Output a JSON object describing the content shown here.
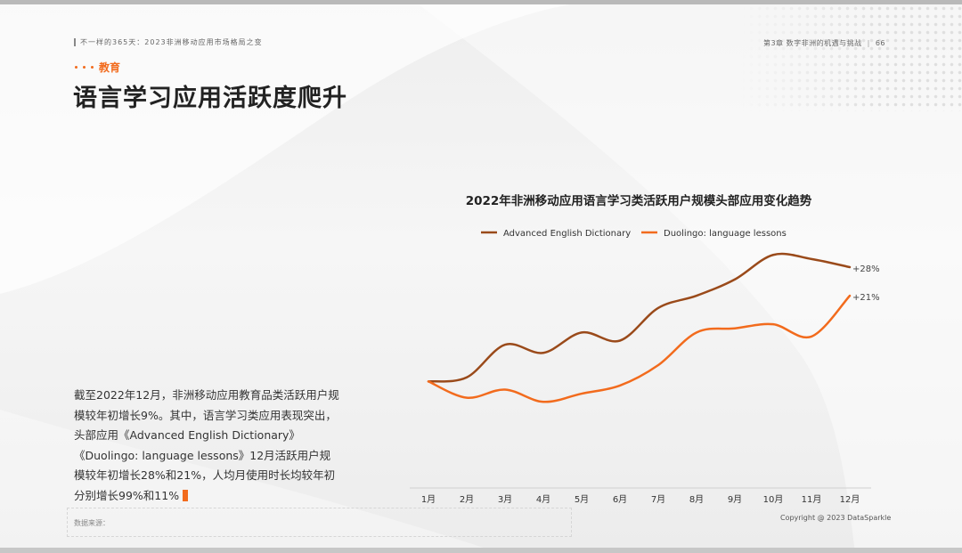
{
  "header": {
    "left_text": "不一样的365天：2023非洲移动应用市场格局之变",
    "right_text": "第3章 数字非洲的机遇与挑战",
    "page_number": "66"
  },
  "section_tag": "教育",
  "page_title": "语言学习应用活跃度爬升",
  "body": {
    "paragraph": "截至2022年12月，非洲移动应用教育品类活跃用户规模较年初增长9%。其中，语言学习类应用表现突出，头部应用《Advanced English Dictionary》《Duolingo: language lessons》12月活跃用户规模较年初增长28%和21%，人均月使用时长均较年初分别增长99%和11%"
  },
  "source_label": "数据来源：",
  "copyright": "Copyright @ 2023 DataSparkle",
  "colors": {
    "accent": "#f26b1d",
    "series_brown": "#9a4a1a",
    "series_orange": "#f26b1d"
  },
  "chart_data": {
    "type": "line",
    "title": "2022年非洲移动应用语言学习类活跃用户规模头部应用变化趋势",
    "categories": [
      "1月",
      "2月",
      "3月",
      "4月",
      "5月",
      "6月",
      "7月",
      "8月",
      "9月",
      "10月",
      "11月",
      "12月"
    ],
    "series": [
      {
        "name": "Advanced English Dictionary",
        "color": "#9a4a1a",
        "values": [
          100,
          101,
          109,
          107,
          112,
          110,
          118,
          121,
          125,
          131,
          130,
          128
        ],
        "end_label": "+28%"
      },
      {
        "name": "Duolingo: language lessons",
        "color": "#f26b1d",
        "values": [
          100,
          96,
          98,
          95,
          97,
          99,
          104,
          112,
          113,
          114,
          111,
          121
        ],
        "end_label": "+21%"
      }
    ],
    "ylim": [
      80,
      140
    ],
    "grid": false,
    "legend_position": "top"
  }
}
